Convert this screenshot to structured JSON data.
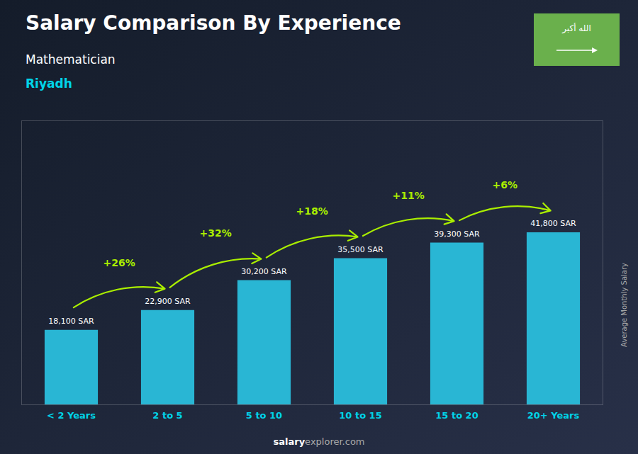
{
  "chart_data": {
    "type": "bar",
    "title": "Salary Comparison By Experience",
    "subtitle": "Mathematician",
    "location": "Riyadh",
    "ylabel": "Average Monthly Salary",
    "footer_bold": "salary",
    "footer_normal": "explorer.com",
    "flag_text": "الله أكبر",
    "categories": [
      "< 2 Years",
      "2 to 5",
      "5 to 10",
      "10 to 15",
      "15 to 20",
      "20+ Years"
    ],
    "values": [
      18100,
      22900,
      30200,
      35500,
      39300,
      41800
    ],
    "value_labels": [
      "18,100 SAR",
      "22,900 SAR",
      "30,200 SAR",
      "35,500 SAR",
      "39,300 SAR",
      "41,800 SAR"
    ],
    "data_labels": true,
    "change_labels": [
      null,
      "+26%",
      "+32%",
      "+18%",
      "+11%",
      "+6%"
    ],
    "color": "#29b6d4",
    "ylim": [
      0,
      68970
    ],
    "yticks": [],
    "tick_labels": "x",
    "grid": false
  }
}
